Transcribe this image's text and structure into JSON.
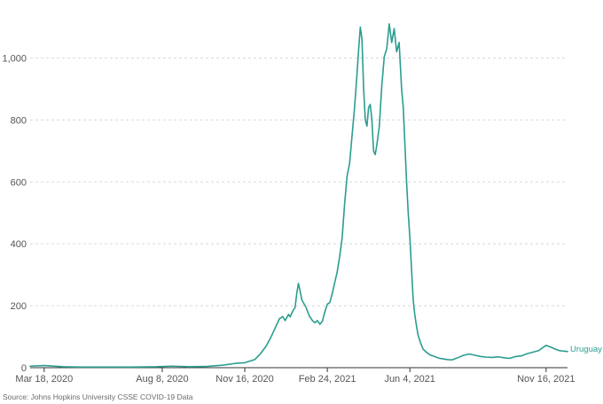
{
  "source": "Source: Johns Hopkins University CSSE COVID-19 Data",
  "colors": {
    "line": "#2a9d8f",
    "grid": "#d9d9d9",
    "axis": "#333333",
    "text": "#555555"
  },
  "chart_data": {
    "type": "line",
    "title": "",
    "xlabel": "",
    "ylabel": "",
    "xlim": [
      "2020-03-01",
      "2021-12-12"
    ],
    "ylim": [
      0,
      1130
    ],
    "grid": true,
    "y_ticks": [
      {
        "value": 0,
        "label": "0"
      },
      {
        "value": 200,
        "label": "200"
      },
      {
        "value": 400,
        "label": "400"
      },
      {
        "value": 600,
        "label": "600"
      },
      {
        "value": 800,
        "label": "800"
      },
      {
        "value": 1000,
        "label": "1,000"
      }
    ],
    "x_ticks": [
      {
        "date": "2020-03-18",
        "label": "Mar 18, 2020"
      },
      {
        "date": "2020-08-08",
        "label": "Aug 8, 2020"
      },
      {
        "date": "2020-11-16",
        "label": "Nov 16, 2020"
      },
      {
        "date": "2021-02-24",
        "label": "Feb 24, 2021"
      },
      {
        "date": "2021-06-04",
        "label": "Jun 4, 2021"
      },
      {
        "date": "2021-11-16",
        "label": "Nov 16, 2021"
      }
    ],
    "series": [
      {
        "name": "Uruguay",
        "x": [
          "2020-03-01",
          "2020-03-18",
          "2020-04-10",
          "2020-05-01",
          "2020-06-01",
          "2020-07-01",
          "2020-08-01",
          "2020-08-20",
          "2020-09-10",
          "2020-10-01",
          "2020-10-20",
          "2020-11-05",
          "2020-11-16",
          "2020-11-28",
          "2020-12-05",
          "2020-12-12",
          "2020-12-18",
          "2020-12-24",
          "2020-12-28",
          "2021-01-01",
          "2021-01-04",
          "2021-01-08",
          "2021-01-10",
          "2021-01-13",
          "2021-01-16",
          "2021-01-18",
          "2021-01-20",
          "2021-01-22",
          "2021-01-24",
          "2021-01-26",
          "2021-01-29",
          "2021-02-02",
          "2021-02-06",
          "2021-02-09",
          "2021-02-12",
          "2021-02-15",
          "2021-02-18",
          "2021-02-21",
          "2021-02-24",
          "2021-02-27",
          "2021-03-02",
          "2021-03-05",
          "2021-03-08",
          "2021-03-11",
          "2021-03-14",
          "2021-03-17",
          "2021-03-20",
          "2021-03-23",
          "2021-03-26",
          "2021-03-29",
          "2021-04-01",
          "2021-04-03",
          "2021-04-05",
          "2021-04-07",
          "2021-04-09",
          "2021-04-11",
          "2021-04-13",
          "2021-04-15",
          "2021-04-17",
          "2021-04-19",
          "2021-04-21",
          "2021-04-23",
          "2021-04-25",
          "2021-04-28",
          "2021-05-01",
          "2021-05-04",
          "2021-05-07",
          "2021-05-10",
          "2021-05-13",
          "2021-05-16",
          "2021-05-19",
          "2021-05-22",
          "2021-05-25",
          "2021-05-27",
          "2021-05-29",
          "2021-05-31",
          "2021-06-02",
          "2021-06-04",
          "2021-06-06",
          "2021-06-08",
          "2021-06-10",
          "2021-06-12",
          "2021-06-14",
          "2021-06-17",
          "2021-06-20",
          "2021-06-24",
          "2021-06-28",
          "2021-07-02",
          "2021-07-06",
          "2021-07-10",
          "2021-07-15",
          "2021-07-20",
          "2021-07-25",
          "2021-08-01",
          "2021-08-08",
          "2021-08-15",
          "2021-08-22",
          "2021-08-29",
          "2021-09-05",
          "2021-09-12",
          "2021-09-19",
          "2021-09-26",
          "2021-10-03",
          "2021-10-10",
          "2021-10-17",
          "2021-10-24",
          "2021-10-31",
          "2021-11-07",
          "2021-11-16",
          "2021-11-23",
          "2021-11-27",
          "2021-12-01",
          "2021-12-05",
          "2021-12-09",
          "2021-12-12"
        ],
        "y": [
          5,
          7,
          3,
          2,
          2,
          2,
          3,
          5,
          3,
          4,
          8,
          14,
          16,
          26,
          45,
          70,
          100,
          135,
          158,
          165,
          152,
          172,
          164,
          182,
          195,
          240,
          272,
          248,
          220,
          210,
          196,
          168,
          152,
          145,
          152,
          140,
          150,
          180,
          205,
          210,
          240,
          275,
          310,
          360,
          420,
          530,
          620,
          660,
          750,
          840,
          950,
          1030,
          1100,
          1060,
          900,
          800,
          780,
          840,
          850,
          800,
          700,
          688,
          720,
          780,
          910,
          1005,
          1030,
          1110,
          1050,
          1095,
          1020,
          1050,
          900,
          840,
          720,
          600,
          500,
          420,
          320,
          220,
          170,
          135,
          105,
          80,
          60,
          50,
          42,
          38,
          34,
          30,
          28,
          26,
          25,
          32,
          40,
          44,
          40,
          36,
          34,
          33,
          35,
          32,
          30,
          36,
          38,
          45,
          50,
          55,
          72,
          65,
          60,
          56,
          54,
          53,
          52
        ]
      }
    ]
  }
}
